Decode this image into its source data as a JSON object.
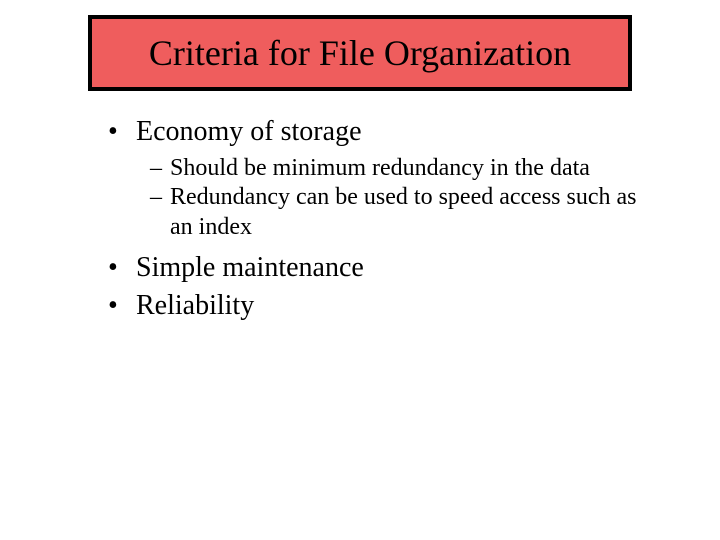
{
  "title": {
    "text": "Criteria for File Organization",
    "title_fontsize": 36,
    "title_color": "#000000",
    "bar_outer_color": "#000000",
    "bar_inner_color": "#ef5d5d"
  },
  "bullets": [
    {
      "text": "Economy of storage",
      "children": [
        {
          "text": "Should be minimum redundancy in the data"
        },
        {
          "text": "Redundancy can be used to speed access such as an index"
        }
      ]
    },
    {
      "text": "Simple maintenance",
      "children": []
    },
    {
      "text": "Reliability",
      "children": []
    }
  ],
  "style": {
    "l1_fontsize": 28,
    "l2_fontsize": 24,
    "text_color": "#000000",
    "background_color": "#ffffff",
    "l1_marker": "•",
    "l2_marker": "–"
  }
}
